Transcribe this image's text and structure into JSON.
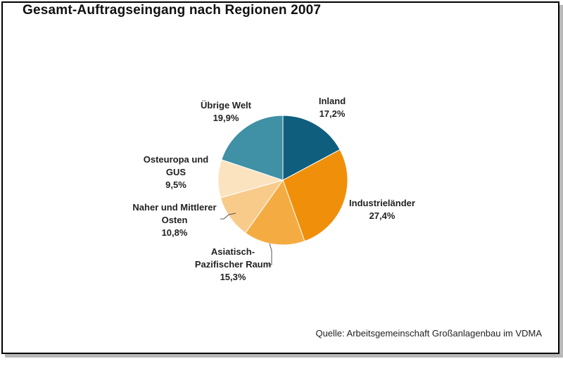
{
  "chart_data": {
    "type": "pie",
    "title": "Gesamt-Auftragseingang nach Regionen 2007",
    "source": "Quelle: Arbeitsgemeinschaft Großanlagenbau im VDMA",
    "slices": [
      {
        "name": "Inland",
        "value": 17.2,
        "value_label": "17,2%",
        "label_lines": [
          "Inland"
        ],
        "color": "#0f5e7e"
      },
      {
        "name": "Industrieländer",
        "value": 27.4,
        "value_label": "27,4%",
        "label_lines": [
          "Industrieländer"
        ],
        "color": "#f0900a"
      },
      {
        "name": "Asiatisch-Pazifischer Raum",
        "value": 15.3,
        "value_label": "15,3%",
        "label_lines": [
          "Asiatisch-",
          "Pazifischer Raum"
        ],
        "color": "#f4ac42"
      },
      {
        "name": "Naher und Mittlerer Osten",
        "value": 10.8,
        "value_label": "10,8%",
        "label_lines": [
          "Naher und Mittlerer",
          "Osten"
        ],
        "color": "#f8cb8a"
      },
      {
        "name": "Osteuropa und GUS",
        "value": 9.5,
        "value_label": "9,5%",
        "label_lines": [
          "Osteuropa und",
          "GUS"
        ],
        "color": "#fbe3c0"
      },
      {
        "name": "Übrige Welt",
        "value": 19.9,
        "value_label": "19,9%",
        "label_lines": [
          "Übrige Welt"
        ],
        "color": "#4090a6"
      }
    ]
  }
}
